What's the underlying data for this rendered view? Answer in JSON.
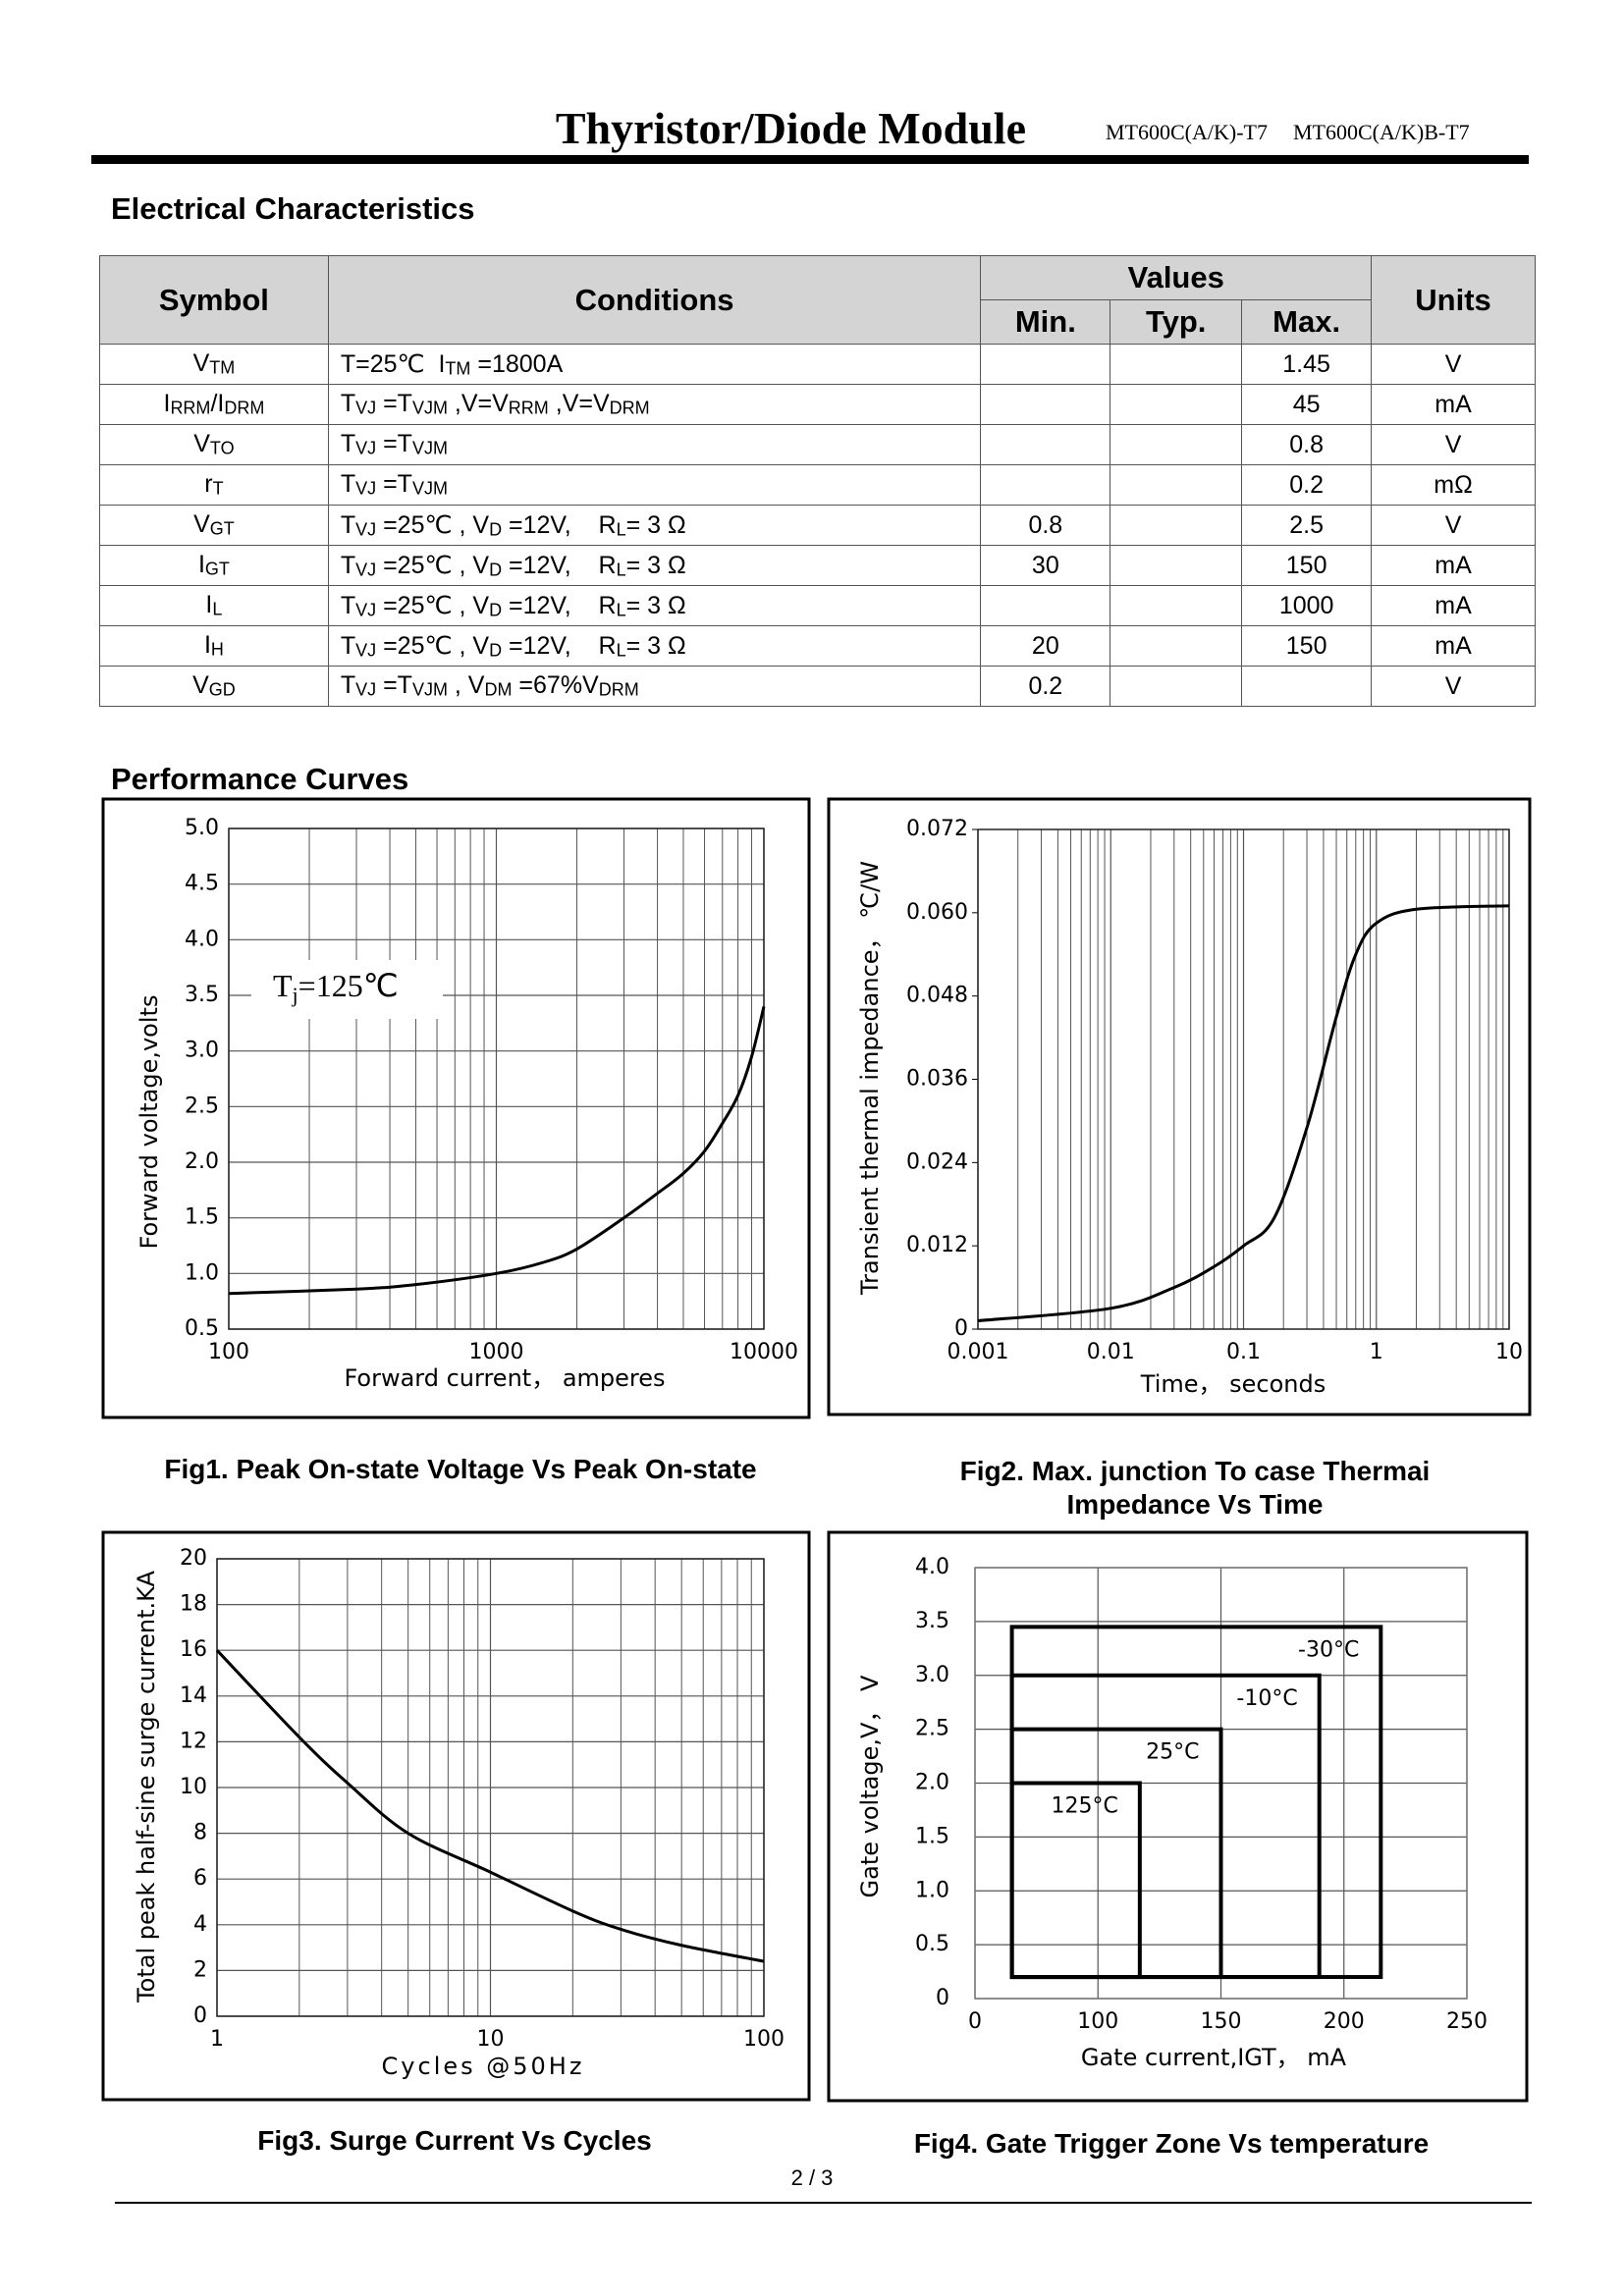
{
  "header": {
    "title": "Thyristor/Diode Module",
    "models": [
      "MT600C(A/K)-T7",
      "MT600C(A/K)B-T7"
    ]
  },
  "sections": {
    "electrical": "Electrical Characteristics",
    "performance": "Performance Curves"
  },
  "table": {
    "header": {
      "symbol": "Symbol",
      "conditions": "Conditions",
      "values": "Values",
      "min": "Min.",
      "typ": "Typ.",
      "max": "Max.",
      "units": "Units"
    },
    "rows": [
      {
        "symbol": [
          "V",
          "TM"
        ],
        "conditions": [
          "T=25℃  I",
          "TM",
          " =1800A"
        ],
        "min": null,
        "typ": null,
        "max": 1.45,
        "units": "V"
      },
      {
        "symbol": [
          "I",
          "RRM",
          "/I",
          "DRM"
        ],
        "conditions": [
          "T",
          "VJ",
          " =T",
          "VJM",
          " ,V=V",
          "RRM",
          " ,V=V",
          "DRM"
        ],
        "min": null,
        "typ": null,
        "max": 45,
        "units": "mA"
      },
      {
        "symbol": [
          "V",
          "TO"
        ],
        "conditions": [
          "T",
          "VJ",
          " =T",
          "VJM"
        ],
        "min": null,
        "typ": null,
        "max": 0.8,
        "units": "V"
      },
      {
        "symbol": [
          "r",
          "T"
        ],
        "conditions": [
          "T",
          "VJ",
          " =T",
          "VJM"
        ],
        "min": null,
        "typ": null,
        "max": 0.2,
        "units": "mΩ"
      },
      {
        "symbol": [
          "V",
          "GT"
        ],
        "conditions": [
          "T",
          "VJ",
          " =25℃ , V",
          "D",
          " =12V,    R",
          "L",
          "= 3 Ω"
        ],
        "min": 0.8,
        "typ": null,
        "max": 2.5,
        "units": "V"
      },
      {
        "symbol": [
          "I",
          "GT"
        ],
        "conditions": [
          "T",
          "VJ",
          " =25℃ , V",
          "D",
          " =12V,    R",
          "L",
          "= 3 Ω"
        ],
        "min": 30,
        "typ": null,
        "max": 150,
        "units": "mA"
      },
      {
        "symbol": [
          "I",
          "L"
        ],
        "conditions": [
          "T",
          "VJ",
          " =25℃ , V",
          "D",
          " =12V,    R",
          "L",
          "= 3 Ω"
        ],
        "min": null,
        "typ": null,
        "max": 1000,
        "units": "mA"
      },
      {
        "symbol": [
          "I",
          "H"
        ],
        "conditions": [
          "T",
          "VJ",
          " =25℃ , V",
          "D",
          " =12V,    R",
          "L",
          "= 3 Ω"
        ],
        "min": 20,
        "typ": null,
        "max": 150,
        "units": "mA"
      },
      {
        "symbol": [
          "V",
          "GD"
        ],
        "conditions": [
          "T",
          "VJ",
          " =T",
          "VJM",
          " , V",
          "DM",
          " =67%V",
          "DRM"
        ],
        "min": 0.2,
        "typ": null,
        "max": null,
        "units": "V"
      }
    ]
  },
  "chart_data": [
    {
      "type": "line",
      "title": "Fig1. Peak On-state Voltage Vs Peak On-state",
      "xlabel": "Forward current， amperes",
      "ylabel": "Forward voltage,volts",
      "annotation": [
        "T",
        "j",
        "=125℃"
      ],
      "x": [
        100,
        300,
        500,
        1000,
        1500,
        2000,
        3000,
        4000,
        5000,
        6000,
        7000,
        8000,
        9000,
        10000
      ],
      "values": [
        0.82,
        0.86,
        0.9,
        1.0,
        1.1,
        1.22,
        1.5,
        1.72,
        1.9,
        2.1,
        2.35,
        2.6,
        2.95,
        3.4
      ],
      "color": "#000000",
      "xscale": "log",
      "xlim": [
        100,
        10000
      ],
      "xticks": [
        100,
        1000,
        10000
      ],
      "ylim": [
        0.5,
        5
      ],
      "yticks": [
        0.5,
        {
          "value": 1,
          "label": "1.0"
        },
        1.5,
        {
          "value": 2,
          "label": "2.0"
        },
        2.5,
        {
          "value": 3,
          "label": "3.0"
        },
        3.5,
        {
          "value": 4,
          "label": "4.0"
        },
        4.5,
        {
          "value": 5,
          "label": "5.0"
        }
      ],
      "grid": true
    },
    {
      "type": "line",
      "title": "Fig2. Max. junction To case Thermai Impedance Vs Time",
      "xlabel": "Time， seconds",
      "ylabel": "Transient thermal impedance， ℃/W",
      "x": [
        0.001,
        0.01,
        0.03,
        0.06,
        0.1,
        0.17,
        0.3,
        0.5,
        0.7,
        1,
        2,
        10
      ],
      "values": [
        0.0012,
        0.003,
        0.006,
        0.009,
        0.012,
        0.016,
        0.029,
        0.045,
        0.054,
        0.0585,
        0.0605,
        0.061
      ],
      "color": "#000000",
      "xscale": "log",
      "xlim": [
        0.001,
        10
      ],
      "xticks": [
        0.001,
        0.01,
        0.1,
        1,
        10
      ],
      "ylim": [
        0,
        0.072
      ],
      "yticks": [
        0,
        0.012,
        0.024,
        0.036,
        0.048,
        {
          "value": 0.06,
          "label": "0.060"
        },
        0.072
      ],
      "grid": "x"
    },
    {
      "type": "line",
      "title": "Fig3. Surge Current Vs Cycles",
      "xlabel": "Cycles @50Hz",
      "ylabel": "Total peak half-sine surge current.KA",
      "x": [
        1,
        2,
        3,
        5,
        10,
        20,
        30,
        50,
        100
      ],
      "values": [
        16,
        12.2,
        10.2,
        8,
        6.3,
        4.6,
        3.8,
        3.1,
        2.4
      ],
      "color": "#000000",
      "xscale": "log",
      "xlim": [
        1,
        100
      ],
      "xticks": [
        1,
        10,
        100
      ],
      "ylim": [
        0,
        20
      ],
      "yticks": [
        0,
        2,
        4,
        6,
        8,
        10,
        12,
        14,
        16,
        18,
        20
      ],
      "grid": true
    },
    {
      "type": "zone",
      "title": "Fig4. Gate Trigger Zone Vs temperature",
      "xlabel": "Gate current,IGT， mA",
      "ylabel": "Gate voltage,V， V",
      "series": [
        {
          "name": "-30°C",
          "x": [
            30,
            215
          ],
          "y": [
            0.2,
            3.45
          ]
        },
        {
          "name": "-10°C",
          "x": [
            30,
            190
          ],
          "y": [
            0.2,
            3.0
          ]
        },
        {
          "name": "25°C",
          "x": [
            30,
            150
          ],
          "y": [
            0.2,
            2.5
          ]
        },
        {
          "name": "125°C",
          "x": [
            30,
            117
          ],
          "y": [
            0.2,
            2.0
          ]
        }
      ],
      "color": "#000000",
      "xscale": "piecewise",
      "xlim": [
        0,
        250
      ],
      "xticks": [
        0,
        100,
        150,
        200,
        250
      ],
      "ylim": [
        0,
        4
      ],
      "yticks": [
        0,
        0.5,
        {
          "value": 1,
          "label": "1.0"
        },
        1.5,
        {
          "value": 2,
          "label": "2.0"
        },
        2.5,
        {
          "value": 3,
          "label": "3.0"
        },
        3.5,
        {
          "value": 4,
          "label": "4.0"
        }
      ],
      "grid": true
    }
  ],
  "page_number": "2 / 3"
}
